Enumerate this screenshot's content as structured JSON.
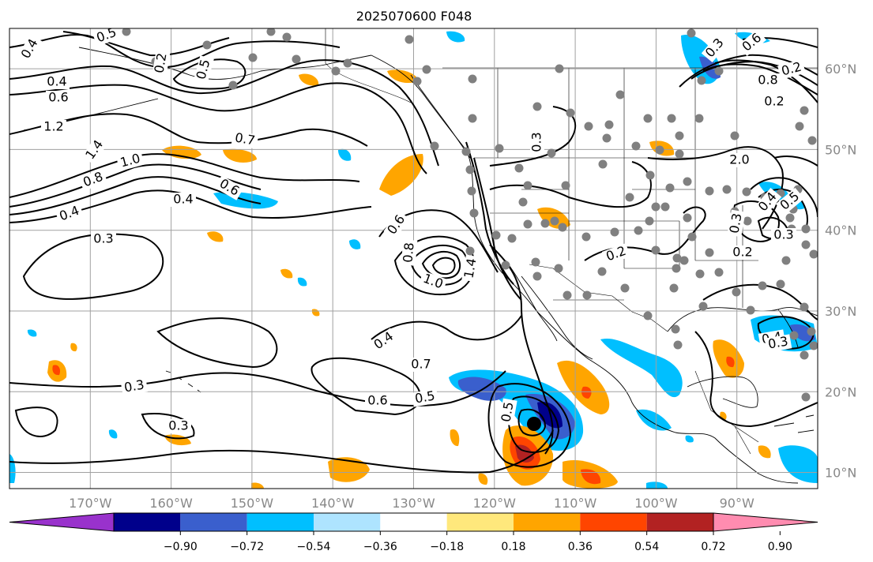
{
  "title": "2025070600 F048",
  "map": {
    "lon_range": [
      180,
      80
    ],
    "lat_range": [
      8,
      65
    ],
    "grid": true,
    "lon_ticks": [
      "170°W",
      "160°W",
      "150°W",
      "140°W",
      "130°W",
      "120°W",
      "110°W",
      "100°W",
      "90°W"
    ],
    "lat_ticks": [
      "10°N",
      "20°N",
      "30°N",
      "40°N",
      "50°N",
      "60°N"
    ],
    "contour_color": "#000000",
    "station_color": "#808080",
    "coastline_color": "#000000",
    "grid_color": "#a0a0a0",
    "contour_labels": [
      "0.4",
      "0.5",
      "0.5",
      "0.4",
      "0.6",
      "1.2",
      "1.4",
      "1.0",
      "0.8",
      "0.4",
      "0.7",
      "0.6",
      "0.4",
      "0.3",
      "0.6",
      "0.8",
      "1.0",
      "1.4",
      "0.4",
      "0.7",
      "0.5",
      "0.6",
      "0.5",
      "0.3",
      "0.3",
      "0.2",
      "0.3",
      "0.2",
      "2.0",
      "0.3",
      "0.2",
      "0.4",
      "0.3",
      "0.5",
      "0.3",
      "0.2",
      "0.8",
      "0.6",
      "0.4",
      "0.3",
      "0.2"
    ]
  },
  "colorbar": {
    "tick_labels": [
      "−0.90",
      "−0.72",
      "−0.54",
      "−0.36",
      "−0.18",
      "0.18",
      "0.36",
      "0.54",
      "0.72",
      "0.90"
    ],
    "colors": [
      "#9932cc",
      "#00008b",
      "#3a5fcd",
      "#00bfff",
      "#aee4ff",
      "#ffffff",
      "#ffe87c",
      "#ffa500",
      "#ff4500",
      "#b22222",
      "#ff8cb0"
    ]
  }
}
